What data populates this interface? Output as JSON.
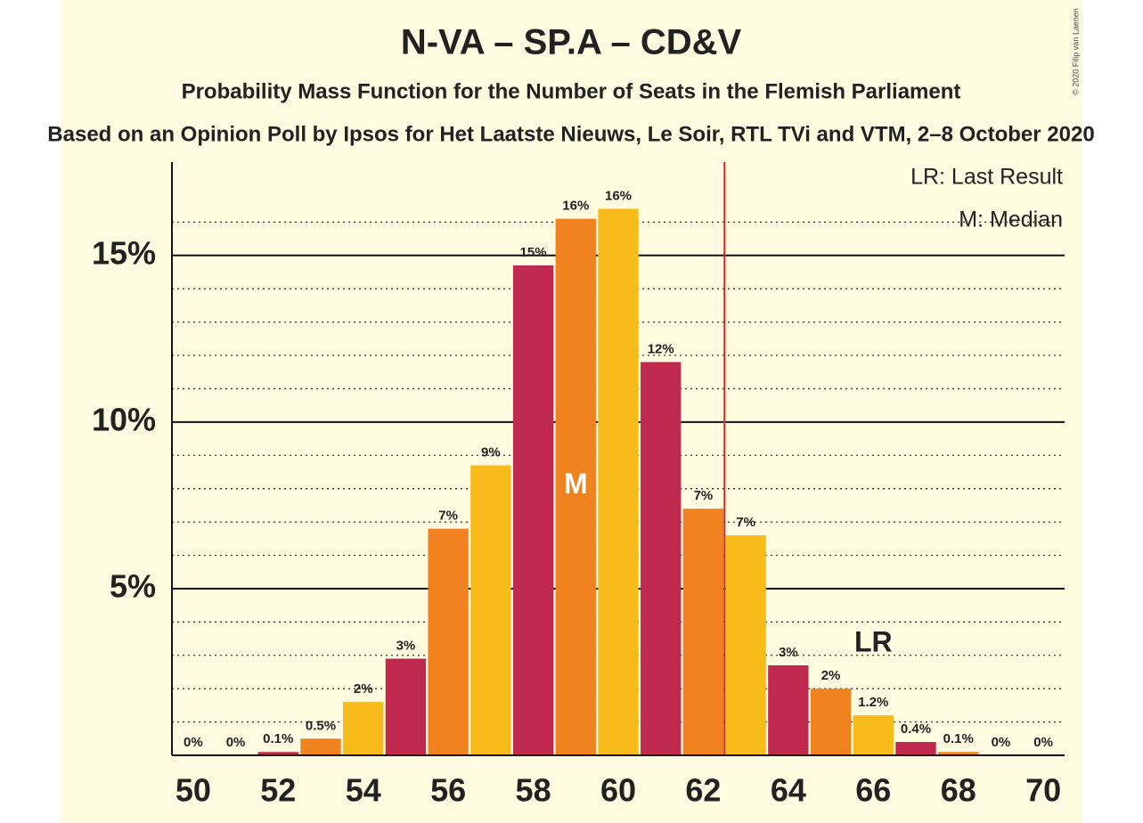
{
  "chart_data": {
    "type": "bar",
    "title": "N-VA – SP.A – CD&V",
    "subtitle": "Probability Mass Function for the Number of Seats in the Flemish Parliament",
    "subtitle2": "Based on an Opinion Poll by Ipsos for Het Laatste Nieuws, Le Soir, RTL TVi and VTM, 2–8 October 2020",
    "copyright": "© 2020 Filip van Laenen",
    "categories": [
      50,
      51,
      52,
      53,
      54,
      55,
      56,
      57,
      58,
      59,
      60,
      61,
      62,
      63,
      64,
      65,
      66,
      67,
      68,
      69,
      70
    ],
    "values": [
      0,
      0,
      0.1,
      0.5,
      1.6,
      2.9,
      6.8,
      8.7,
      14.7,
      16.1,
      16.4,
      11.8,
      7.4,
      6.6,
      2.7,
      2.0,
      1.2,
      0.4,
      0.1,
      0,
      0
    ],
    "value_labels": [
      "0%",
      "0%",
      "0.1%",
      "0.5%",
      "2%",
      "3%",
      "7%",
      "9%",
      "15%",
      "16%",
      "16%",
      "12%",
      "7%",
      "7%",
      "3%",
      "2%",
      "1.2%",
      "0.4%",
      "0.1%",
      "0%",
      "0%"
    ],
    "colors": [
      "#f08220",
      "#f8bb1a",
      "#c0294e",
      "#f08220",
      "#f8bb1a",
      "#c0294e",
      "#f08220",
      "#f8bb1a",
      "#c0294e",
      "#f08220",
      "#f8bb1a",
      "#c0294e",
      "#f08220",
      "#f8bb1a",
      "#c0294e",
      "#f08220",
      "#f8bb1a",
      "#c0294e",
      "#f08220",
      "#f8bb1a",
      "#c0294e"
    ],
    "xlim": [
      49.5,
      70.5
    ],
    "xticks": [
      50,
      52,
      54,
      56,
      58,
      60,
      62,
      64,
      66,
      68,
      70
    ],
    "ylim": [
      0,
      17.8
    ],
    "yticks": [
      {
        "value": 5,
        "label": "5%"
      },
      {
        "value": 10,
        "label": "10%"
      },
      {
        "value": 15,
        "label": "15%"
      }
    ],
    "minor_yticks": [
      1,
      2,
      3,
      4,
      6,
      7,
      8,
      9,
      11,
      12,
      13,
      14,
      16
    ],
    "majority_line": 62.5,
    "median": {
      "x": 59,
      "label": "M"
    },
    "last_result": {
      "x": 66,
      "label": "LR"
    },
    "legend": [
      "LR: Last Result",
      "M: Median"
    ]
  }
}
